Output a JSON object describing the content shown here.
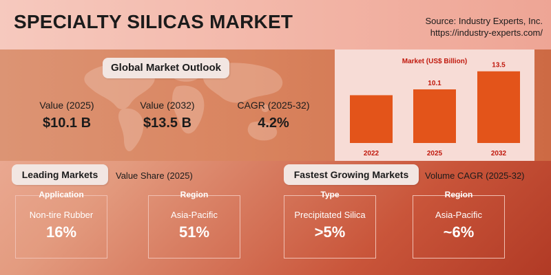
{
  "header": {
    "title": "SPECIALTY SILICAS MARKET",
    "source_line1": "Source: Industry Experts, Inc.",
    "source_line2": "https://industry-experts.com/"
  },
  "outlook": {
    "title": "Global Market Outlook",
    "metrics": [
      {
        "label": "Value (2025)",
        "value": "$10.1 B"
      },
      {
        "label": "Value (2032)",
        "value": "$13.5 B"
      },
      {
        "label": "CAGR (2025-32)",
        "value": "4.2%"
      }
    ]
  },
  "chart_data": {
    "type": "bar",
    "title": "Market (US$ Billion)",
    "categories": [
      "2022",
      "2025",
      "2032"
    ],
    "values": [
      null,
      10.1,
      13.5
    ],
    "estimated_values": [
      9.0,
      null,
      null
    ],
    "data_labels": [
      "",
      "10.1",
      "13.5"
    ],
    "ylim": [
      0,
      14.5
    ],
    "grid": false,
    "bar_color": "#e3541a",
    "xlabel": "",
    "ylabel": ""
  },
  "leading": {
    "title": "Leading Markets",
    "subtitle": "Value Share (2025)",
    "cards": [
      {
        "caption": "Application",
        "name": "Non-tire Rubber",
        "value": "16%"
      },
      {
        "caption": "Region",
        "name": "Asia-Pacific",
        "value": "51%"
      }
    ]
  },
  "fastest": {
    "title": "Fastest Growing Markets",
    "subtitle": "Volume CAGR (2025-32)",
    "cards": [
      {
        "caption": "Type",
        "name": "Precipitated Silica",
        "value": ">5%"
      },
      {
        "caption": "Region",
        "name": "Asia-Pacific",
        "value": "~6%"
      }
    ]
  },
  "colors": {
    "accent": "#e3541a",
    "chart_text": "#c0180c",
    "panel_bg": "#f7dcd6"
  }
}
